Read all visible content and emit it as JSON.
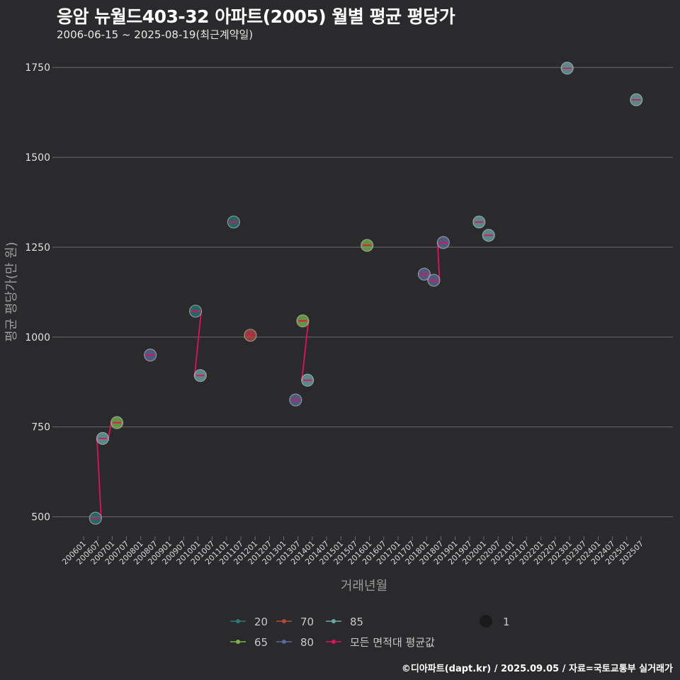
{
  "header": {
    "title": "응암 뉴월드403-32 아파트(2005) 월별 평균 평당가",
    "subtitle": "2006-06-15 ~ 2025-08-19(최근계약일)"
  },
  "footer": {
    "credit": "©디아파트(dapt.kr) / 2025.09.05 / 자료=국토교통부 실거래가"
  },
  "colors": {
    "background": "#2a2a2c",
    "grid": "#6a6a6a",
    "s20": "#2a7a78",
    "s65": "#7ab648",
    "s70": "#b04a3c",
    "s80": "#5a6a9a",
    "s85": "#6aa8a8",
    "avg": "#e0105c"
  },
  "chart_data": {
    "type": "scatter",
    "title": "응암 뉴월드403-32 아파트(2005) 월별 평균 평당가",
    "xlabel": "거래년월",
    "ylabel": "평균 평당가(만 원)",
    "ylim": [
      450,
      1780
    ],
    "yticks": [
      500,
      750,
      1000,
      1250,
      1500,
      1750
    ],
    "x_start": "200601",
    "x_end": "202508",
    "xticks": [
      "200601",
      "200607",
      "200701",
      "200707",
      "200801",
      "200807",
      "200901",
      "200907",
      "201001",
      "201007",
      "201101",
      "201107",
      "201201",
      "201207",
      "201301",
      "201307",
      "201401",
      "201407",
      "201501",
      "201507",
      "201601",
      "201607",
      "201701",
      "201707",
      "201801",
      "201807",
      "201901",
      "201907",
      "202001",
      "202007",
      "202101",
      "202107",
      "202201",
      "202207",
      "202301",
      "202307",
      "202401",
      "202407",
      "202501",
      "202507"
    ],
    "series": [
      {
        "name": "20",
        "color_key": "s20",
        "points": [
          {
            "x": "200606",
            "y": 496
          },
          {
            "x": "200912",
            "y": 1072
          },
          {
            "x": "201104",
            "y": 1320
          }
        ]
      },
      {
        "name": "65",
        "color_key": "s65",
        "points": [
          {
            "x": "200703",
            "y": 762
          },
          {
            "x": "201309",
            "y": 1045
          },
          {
            "x": "201512",
            "y": 1255
          }
        ]
      },
      {
        "name": "70",
        "color_key": "s70",
        "points": [
          {
            "x": "201111",
            "y": 1005
          }
        ]
      },
      {
        "name": "80",
        "color_key": "s80",
        "points": [
          {
            "x": "200805",
            "y": 950
          },
          {
            "x": "201306",
            "y": 825
          },
          {
            "x": "201712",
            "y": 1175
          },
          {
            "x": "201804",
            "y": 1158
          },
          {
            "x": "201808",
            "y": 1263
          }
        ]
      },
      {
        "name": "85",
        "color_key": "s85",
        "points": [
          {
            "x": "200609",
            "y": 718
          },
          {
            "x": "201002",
            "y": 893
          },
          {
            "x": "201311",
            "y": 880
          },
          {
            "x": "201911",
            "y": 1320
          },
          {
            "x": "202003",
            "y": 1283
          },
          {
            "x": "202212",
            "y": 1748
          },
          {
            "x": "202505",
            "y": 1660
          }
        ]
      }
    ],
    "average": {
      "name": "모든 면적대 평균값",
      "color_key": "avg",
      "points": [
        {
          "x": "200606",
          "y": 496
        },
        {
          "x": "200609",
          "y": 718
        },
        {
          "x": "200703",
          "y": 762
        },
        {
          "x": "200805",
          "y": 950
        },
        {
          "x": "200912",
          "y": 1072
        },
        {
          "x": "201002",
          "y": 893
        },
        {
          "x": "201104",
          "y": 1320
        },
        {
          "x": "201111",
          "y": 1005
        },
        {
          "x": "201306",
          "y": 825
        },
        {
          "x": "201309",
          "y": 1045
        },
        {
          "x": "201311",
          "y": 880
        },
        {
          "x": "201512",
          "y": 1255
        },
        {
          "x": "201712",
          "y": 1175
        },
        {
          "x": "201804",
          "y": 1158
        },
        {
          "x": "201808",
          "y": 1263
        },
        {
          "x": "201911",
          "y": 1320
        },
        {
          "x": "202003",
          "y": 1283
        },
        {
          "x": "202212",
          "y": 1748
        },
        {
          "x": "202505",
          "y": 1660
        }
      ],
      "connected": [
        [
          "200606",
          "200609",
          "200703"
        ],
        [
          "200912",
          "201002"
        ],
        [
          "201309",
          "201311"
        ],
        [
          "201712",
          "201804",
          "201808"
        ]
      ]
    },
    "legend": {
      "items": [
        "20",
        "70",
        "85",
        "65",
        "80",
        "모든 면적대 평균값"
      ],
      "size_label": "1",
      "position": "bottom"
    }
  }
}
